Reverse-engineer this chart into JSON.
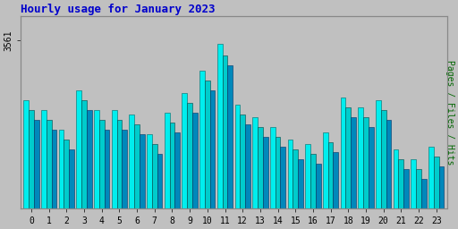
{
  "title": "Hourly usage for January 2023",
  "hours": [
    0,
    1,
    2,
    3,
    4,
    5,
    6,
    7,
    8,
    9,
    10,
    11,
    12,
    13,
    14,
    15,
    16,
    17,
    18,
    19,
    20,
    21,
    22,
    23
  ],
  "hits": [
    3440,
    3420,
    3380,
    3460,
    3420,
    3420,
    3410,
    3370,
    3415,
    3455,
    3500,
    3555,
    3430,
    3405,
    3385,
    3360,
    3350,
    3375,
    3445,
    3425,
    3440,
    3340,
    3320,
    3345
  ],
  "files": [
    3420,
    3400,
    3360,
    3440,
    3400,
    3400,
    3390,
    3350,
    3395,
    3435,
    3480,
    3530,
    3410,
    3385,
    3365,
    3340,
    3330,
    3355,
    3425,
    3405,
    3420,
    3320,
    3300,
    3325
  ],
  "pages": [
    3400,
    3380,
    3340,
    3420,
    3380,
    3380,
    3370,
    3330,
    3375,
    3415,
    3460,
    3510,
    3390,
    3365,
    3345,
    3320,
    3310,
    3335,
    3405,
    3385,
    3400,
    3300,
    3280,
    3305
  ],
  "bar_color_hits": "#00EEEE",
  "bar_color_files": "#00CCCC",
  "bar_color_pages": "#0088BB",
  "bar_edge_hits": "#006666",
  "bar_edge_files": "#004444",
  "bar_edge_pages": "#003366",
  "background_color": "#C0C0C0",
  "plot_bg_color": "#C0C0C0",
  "title_color": "#0000CC",
  "axis_label_color_right": "#006600",
  "tick_label_color": "#000000",
  "ytick_label": "3561",
  "ytick_val": 3561,
  "ylim_min": 3220,
  "ylim_max": 3610,
  "ylabel_right": "Pages / Files / Hits"
}
